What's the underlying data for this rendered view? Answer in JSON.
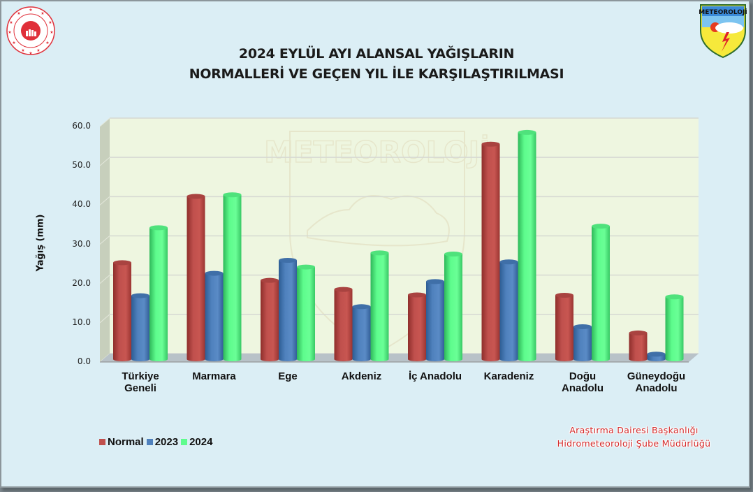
{
  "header": {
    "title_line1": "2024 EYLÜL AYI ALANSAL YAĞIŞLARIN",
    "title_line2": "NORMALLERİ VE GEÇEN YIL İLE KARŞILAŞTIRILMASI",
    "logo_left": "ministry-seal-logo",
    "logo_right_text": "METEOROLOJİ",
    "watermark_text": "METEOROLOJİ"
  },
  "credit": {
    "line1": "Araştırma Dairesi Başkanlığı",
    "line2": "Hidrometeoroloji Şube Müdürlüğü"
  },
  "colors": {
    "normal": "#c0504d",
    "y2023": "#4f81bd",
    "y2024": "#5efc8d",
    "plot_bg": "#eef6e0",
    "page_bg": "#dbeef5",
    "credit": "#d42a2a"
  },
  "chart_data": {
    "type": "bar",
    "title": "2024 EYLÜL AYI ALANSAL YAĞIŞLARIN NORMALLERİ VE GEÇEN YIL İLE KARŞILAŞTIRILMASI",
    "xlabel": "",
    "ylabel": "Yağış (mm)",
    "ylim": [
      0,
      60
    ],
    "yticks": [
      "0.0",
      "10.0",
      "20.0",
      "30.0",
      "40.0",
      "50.0",
      "60.0"
    ],
    "grid": true,
    "legend_position": "bottom-left",
    "categories": [
      "Türkiye Geneli",
      "Marmara",
      "Ege",
      "Akdeniz",
      "İç Anadolu",
      "Karadeniz",
      "Doğu Anadolu",
      "Güneydoğu Anadolu"
    ],
    "category_lines": [
      [
        "Türkiye",
        "Geneli"
      ],
      [
        "Marmara",
        ""
      ],
      [
        "Ege",
        ""
      ],
      [
        "Akdeniz",
        ""
      ],
      [
        "İç Anadolu",
        ""
      ],
      [
        "Karadeniz",
        ""
      ],
      [
        "Doğu",
        "Anadolu"
      ],
      [
        "Güneydoğu",
        "Anadolu"
      ]
    ],
    "series": [
      {
        "name": "Normal",
        "color": "#c0504d",
        "values": [
          25.3,
          42.2,
          20.8,
          18.5,
          17.1,
          55.5,
          17.0,
          7.4
        ]
      },
      {
        "name": "2023",
        "color": "#4f81bd",
        "values": [
          16.9,
          22.6,
          25.9,
          14.1,
          20.5,
          25.5,
          9.0,
          2.0
        ]
      },
      {
        "name": "2024",
        "color": "#5efc8d",
        "values": [
          34.2,
          42.6,
          24.2,
          27.8,
          27.5,
          58.5,
          34.6,
          16.6
        ]
      }
    ]
  }
}
